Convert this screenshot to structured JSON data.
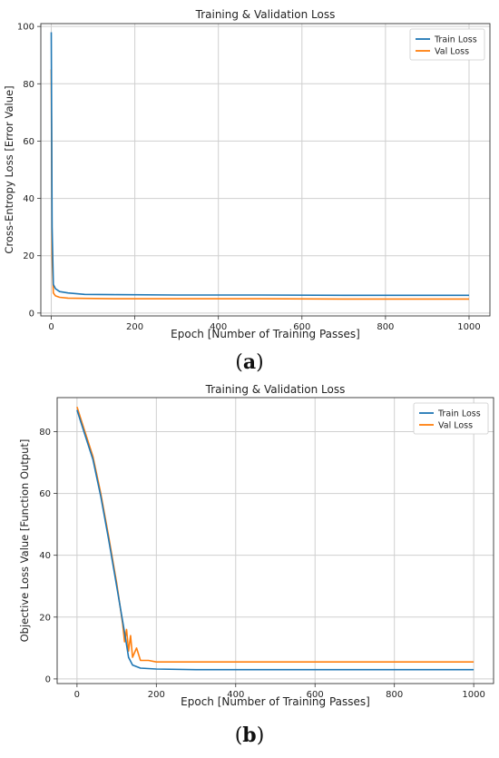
{
  "figure": {
    "panel_labels": [
      "a",
      "b"
    ]
  },
  "colors": {
    "train": "#1f77b4",
    "val": "#ff7f0e",
    "grid": "#cfcfcf",
    "axis": "#333333"
  },
  "chart_data": [
    {
      "type": "line",
      "title": "Training & Validation Loss",
      "xlabel": "Epoch [Number of Training Passes]",
      "ylabel": "Cross-Entropy Loss [Error Value]",
      "xlim": [
        -25,
        1050
      ],
      "ylim": [
        -1,
        101
      ],
      "xticks": [
        0,
        200,
        400,
        600,
        800,
        1000
      ],
      "yticks": [
        0,
        20,
        40,
        60,
        80,
        100
      ],
      "grid": true,
      "legend": "top-right",
      "series": [
        {
          "name": "Train Loss",
          "color": "#1f77b4",
          "x": [
            0,
            2,
            5,
            10,
            20,
            40,
            80,
            150,
            300,
            500,
            700,
            900,
            1000
          ],
          "y": [
            98,
            30,
            10,
            8.5,
            7.5,
            7,
            6.5,
            6.4,
            6.3,
            6.3,
            6.2,
            6.2,
            6.2
          ]
        },
        {
          "name": "Val Loss",
          "color": "#ff7f0e",
          "x": [
            0,
            2,
            5,
            10,
            20,
            40,
            80,
            150,
            300,
            500,
            700,
            900,
            1000
          ],
          "y": [
            85,
            20,
            7,
            6,
            5.5,
            5.2,
            5.1,
            5,
            5,
            5,
            4.9,
            4.9,
            4.9
          ]
        }
      ]
    },
    {
      "type": "line",
      "title": "Training & Validation Loss",
      "xlabel": "Epoch [Number of Training Passes]",
      "ylabel": "Objective Loss Value [Function Output]",
      "xlim": [
        -50,
        1050
      ],
      "ylim": [
        -1.5,
        91
      ],
      "xticks": [
        0,
        200,
        400,
        600,
        800,
        1000
      ],
      "yticks": [
        0,
        20,
        40,
        60,
        80
      ],
      "grid": true,
      "legend": "top-right",
      "series": [
        {
          "name": "Train Loss",
          "color": "#1f77b4",
          "x": [
            0,
            10,
            20,
            40,
            60,
            80,
            100,
            120,
            130,
            140,
            160,
            200,
            300,
            500,
            700,
            900,
            1000
          ],
          "y": [
            87,
            83,
            79,
            71,
            59,
            45,
            30,
            15,
            7,
            4.5,
            3.5,
            3.2,
            3,
            3,
            3,
            3,
            3
          ]
        },
        {
          "name": "Val Loss",
          "color": "#ff7f0e",
          "x": [
            0,
            10,
            20,
            40,
            60,
            80,
            100,
            115,
            120,
            125,
            130,
            135,
            140,
            150,
            160,
            180,
            200,
            300,
            500,
            700,
            900,
            1000
          ],
          "y": [
            88,
            84,
            80,
            72,
            60,
            46,
            31,
            18,
            12,
            16,
            9,
            14,
            7,
            10,
            6,
            6,
            5.5,
            5.5,
            5.5,
            5.5,
            5.5,
            5.5
          ]
        }
      ]
    }
  ]
}
